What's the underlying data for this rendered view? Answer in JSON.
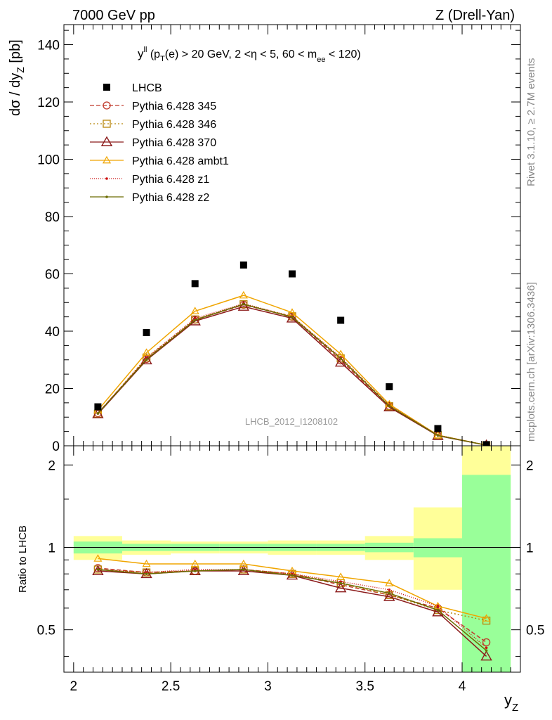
{
  "header": {
    "left": "7000 GeV pp",
    "right": "Z (Drell-Yan)"
  },
  "side_text": {
    "rivet": "Rivet 3.1.10, ≥ 2.7M events",
    "mcplots": "mcplots.cern.ch [arXiv:1306.3436]"
  },
  "chart_data": [
    {
      "type": "scatter",
      "title": "y^ll (pT(e) > 20 GeV, 2 <η < 5, 60 < m_ee < 120)",
      "title_parts": {
        "y": "y",
        "sup": "ll",
        "a": " (p",
        "sub_t": "T",
        "b": "(e) > 20 GeV, 2 <η < 5, 60 < m",
        "sub_ee": "ee",
        "c": " < 120)"
      },
      "watermark": "LHCB_2012_I1208102",
      "ylabel_parts": {
        "a": "dσ / dy",
        "sub": "Z",
        "b": " [pb]"
      },
      "xlim": [
        1.95,
        4.3
      ],
      "ylim": [
        0,
        147
      ],
      "yticks": [
        0,
        20,
        40,
        60,
        80,
        100,
        120,
        140
      ],
      "ytick_labels": [
        "0",
        "20",
        "40",
        "60",
        "80",
        "100",
        "120",
        "140"
      ],
      "x": [
        2.125,
        2.375,
        2.625,
        2.875,
        3.125,
        3.375,
        3.625,
        3.875,
        4.125
      ],
      "data": {
        "name": "LHCB",
        "values": [
          13.6,
          39.5,
          56.6,
          63.1,
          60.0,
          43.8,
          20.6,
          6.0,
          0.4
        ]
      },
      "legend_position": "top-left",
      "series": [
        {
          "name": "Pythia 6.428 345",
          "color": "#c0392b",
          "dash": "6,3",
          "marker": "circle",
          "values": [
            11.4,
            30.3,
            44.0,
            49.2,
            45.0,
            29.8,
            13.9,
            3.6,
            0.2
          ]
        },
        {
          "name": "Pythia 6.428 346",
          "color": "#b8860b",
          "dash": "2,3",
          "marker": "square",
          "values": [
            11.2,
            30.8,
            44.1,
            49.4,
            45.2,
            30.5,
            13.8,
            3.7,
            0.2
          ]
        },
        {
          "name": "Pythia 6.428 370",
          "color": "#8b1a1a",
          "dash": "",
          "marker": "triangle-big",
          "values": [
            11.1,
            29.9,
            43.5,
            48.6,
            44.5,
            29.1,
            13.5,
            3.5,
            0.2
          ]
        },
        {
          "name": "Pythia 6.428 ambt1",
          "color": "#f0a500",
          "dash": "",
          "marker": "triangle",
          "values": [
            12.4,
            32.5,
            47.0,
            52.5,
            46.5,
            32.0,
            14.5,
            3.7,
            0.2
          ]
        },
        {
          "name": "Pythia 6.428 z1",
          "color": "#cc1111",
          "dash": "1,2",
          "marker": "dot",
          "values": [
            11.3,
            30.6,
            44.5,
            49.6,
            45.1,
            30.9,
            14.1,
            3.7,
            0.2
          ]
        },
        {
          "name": "Pythia 6.428 z2",
          "color": "#6b6b00",
          "dash": "",
          "marker": "dot",
          "values": [
            11.3,
            30.1,
            43.9,
            49.4,
            44.9,
            30.5,
            13.9,
            3.6,
            0.2
          ]
        }
      ]
    },
    {
      "type": "line",
      "ylabel": "Ratio to LHCB",
      "xlabel_parts": {
        "a": "y",
        "sub": "Z"
      },
      "xlim": [
        1.95,
        4.3
      ],
      "ylim": [
        0.35,
        2.35
      ],
      "xticks": [
        2,
        2.5,
        3,
        3.5,
        4
      ],
      "xtick_labels": [
        "2",
        "2.5",
        "3",
        "3.5",
        "4"
      ],
      "yticks": [
        0.5,
        1,
        2
      ],
      "ytick_labels": [
        "0.5",
        "1",
        "2"
      ],
      "bin_edges": [
        2.0,
        2.25,
        2.5,
        2.75,
        3.0,
        3.25,
        3.5,
        3.75,
        4.0,
        4.25
      ],
      "band_inner": [
        [
          0.95,
          1.05
        ],
        [
          0.97,
          1.03
        ],
        [
          0.97,
          1.03
        ],
        [
          0.97,
          1.03
        ],
        [
          0.97,
          1.03
        ],
        [
          0.97,
          1.03
        ],
        [
          0.96,
          1.04
        ],
        [
          0.92,
          1.08
        ],
        [
          0.35,
          1.84
        ]
      ],
      "band_outer": [
        [
          0.9,
          1.1
        ],
        [
          0.94,
          1.06
        ],
        [
          0.95,
          1.05
        ],
        [
          0.95,
          1.05
        ],
        [
          0.94,
          1.06
        ],
        [
          0.94,
          1.06
        ],
        [
          0.9,
          1.1
        ],
        [
          0.7,
          1.4
        ],
        [
          0.35,
          2.35
        ]
      ],
      "band_colors": {
        "inner": "#99ff99",
        "outer": "#ffff99"
      },
      "series": [
        {
          "name": "Pythia 6.428 345",
          "color": "#c0392b",
          "dash": "6,3",
          "marker": "circle",
          "values": [
            0.84,
            0.81,
            0.82,
            0.83,
            0.8,
            0.73,
            0.67,
            0.6,
            0.45
          ]
        },
        {
          "name": "Pythia 6.428 346",
          "color": "#b8860b",
          "dash": "2,3",
          "marker": "square",
          "values": [
            0.83,
            0.81,
            0.82,
            0.83,
            0.8,
            0.74,
            0.67,
            0.59,
            0.54
          ]
        },
        {
          "name": "Pythia 6.428 370",
          "color": "#8b1a1a",
          "dash": "",
          "marker": "triangle-big",
          "values": [
            0.82,
            0.8,
            0.82,
            0.82,
            0.79,
            0.71,
            0.66,
            0.58,
            0.4
          ]
        },
        {
          "name": "Pythia 6.428 ambt1",
          "color": "#f0a500",
          "dash": "",
          "marker": "triangle",
          "values": [
            0.91,
            0.87,
            0.87,
            0.87,
            0.82,
            0.78,
            0.74,
            0.61,
            0.55
          ]
        },
        {
          "name": "Pythia 6.428 z1",
          "color": "#cc1111",
          "dash": "1,2",
          "marker": "dot",
          "values": [
            0.83,
            0.81,
            0.83,
            0.83,
            0.8,
            0.75,
            0.7,
            0.61,
            0.43
          ]
        },
        {
          "name": "Pythia 6.428 z2",
          "color": "#6b6b00",
          "dash": "",
          "marker": "dot",
          "values": [
            0.83,
            0.8,
            0.82,
            0.83,
            0.79,
            0.74,
            0.68,
            0.59,
            0.42
          ]
        }
      ]
    }
  ]
}
